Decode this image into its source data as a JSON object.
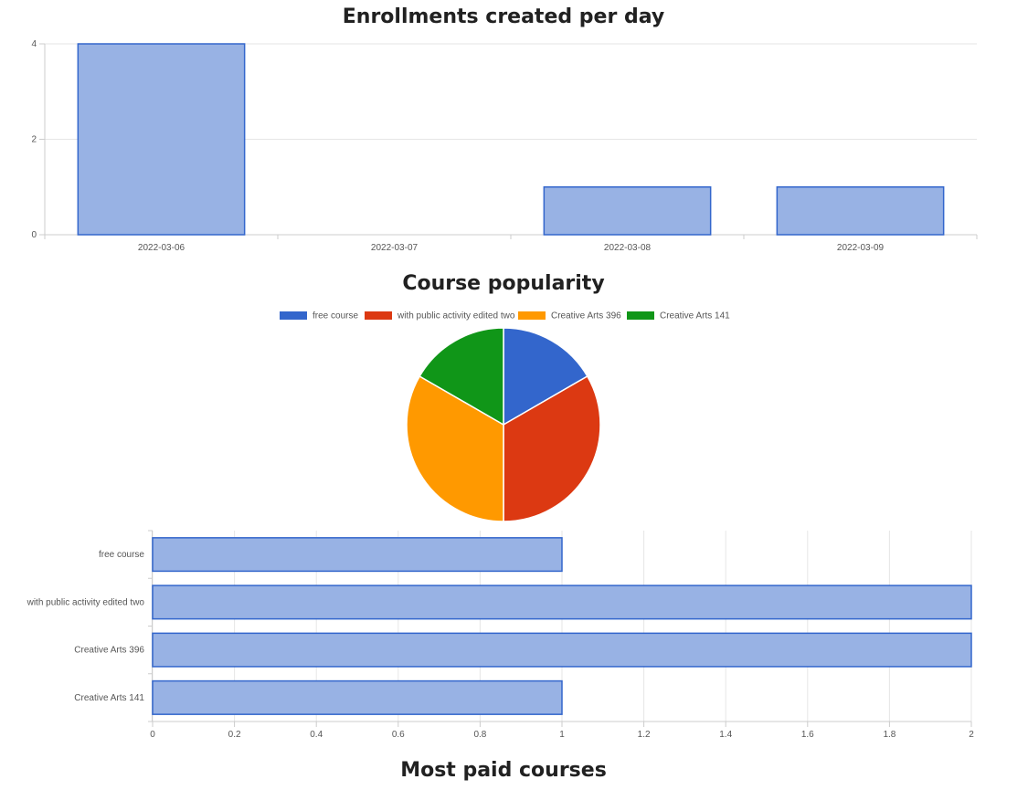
{
  "titles": {
    "enrollments": "Enrollments created per day",
    "popularity": "Course popularity",
    "paid": "Most paid courses"
  },
  "colors": {
    "bar_fill": "#98b2e4",
    "bar_stroke": "#3366cc",
    "grid": "#e6e6e6",
    "axis": "#cccccc"
  },
  "chart_data": [
    {
      "type": "bar",
      "title": "Enrollments created per day",
      "categories": [
        "2022-03-06",
        "2022-03-07",
        "2022-03-08",
        "2022-03-09"
      ],
      "values": [
        4,
        0,
        1,
        1
      ],
      "y_ticks": [
        "0",
        "2",
        "4"
      ],
      "ylim": [
        0,
        4
      ],
      "grid": true
    },
    {
      "type": "pie",
      "title": "Course popularity",
      "legend_position": "top",
      "labels": [
        "free course",
        "with public activity edited two",
        "Creative Arts 396",
        "Creative Arts 141"
      ],
      "values": [
        1,
        2,
        2,
        1
      ],
      "colors": [
        "#3366cc",
        "#dc3912",
        "#ff9900",
        "#109618"
      ]
    },
    {
      "type": "bar",
      "orientation": "horizontal",
      "categories": [
        "free course",
        "with public activity edited two",
        "Creative Arts 396",
        "Creative Arts 141"
      ],
      "values": [
        1,
        2,
        2,
        1
      ],
      "x_ticks": [
        "0",
        "0.2",
        "0.4",
        "0.6",
        "0.8",
        "1",
        "1.2",
        "1.4",
        "1.6",
        "1.8",
        "2"
      ],
      "xlim": [
        0,
        2
      ],
      "grid": true
    }
  ]
}
